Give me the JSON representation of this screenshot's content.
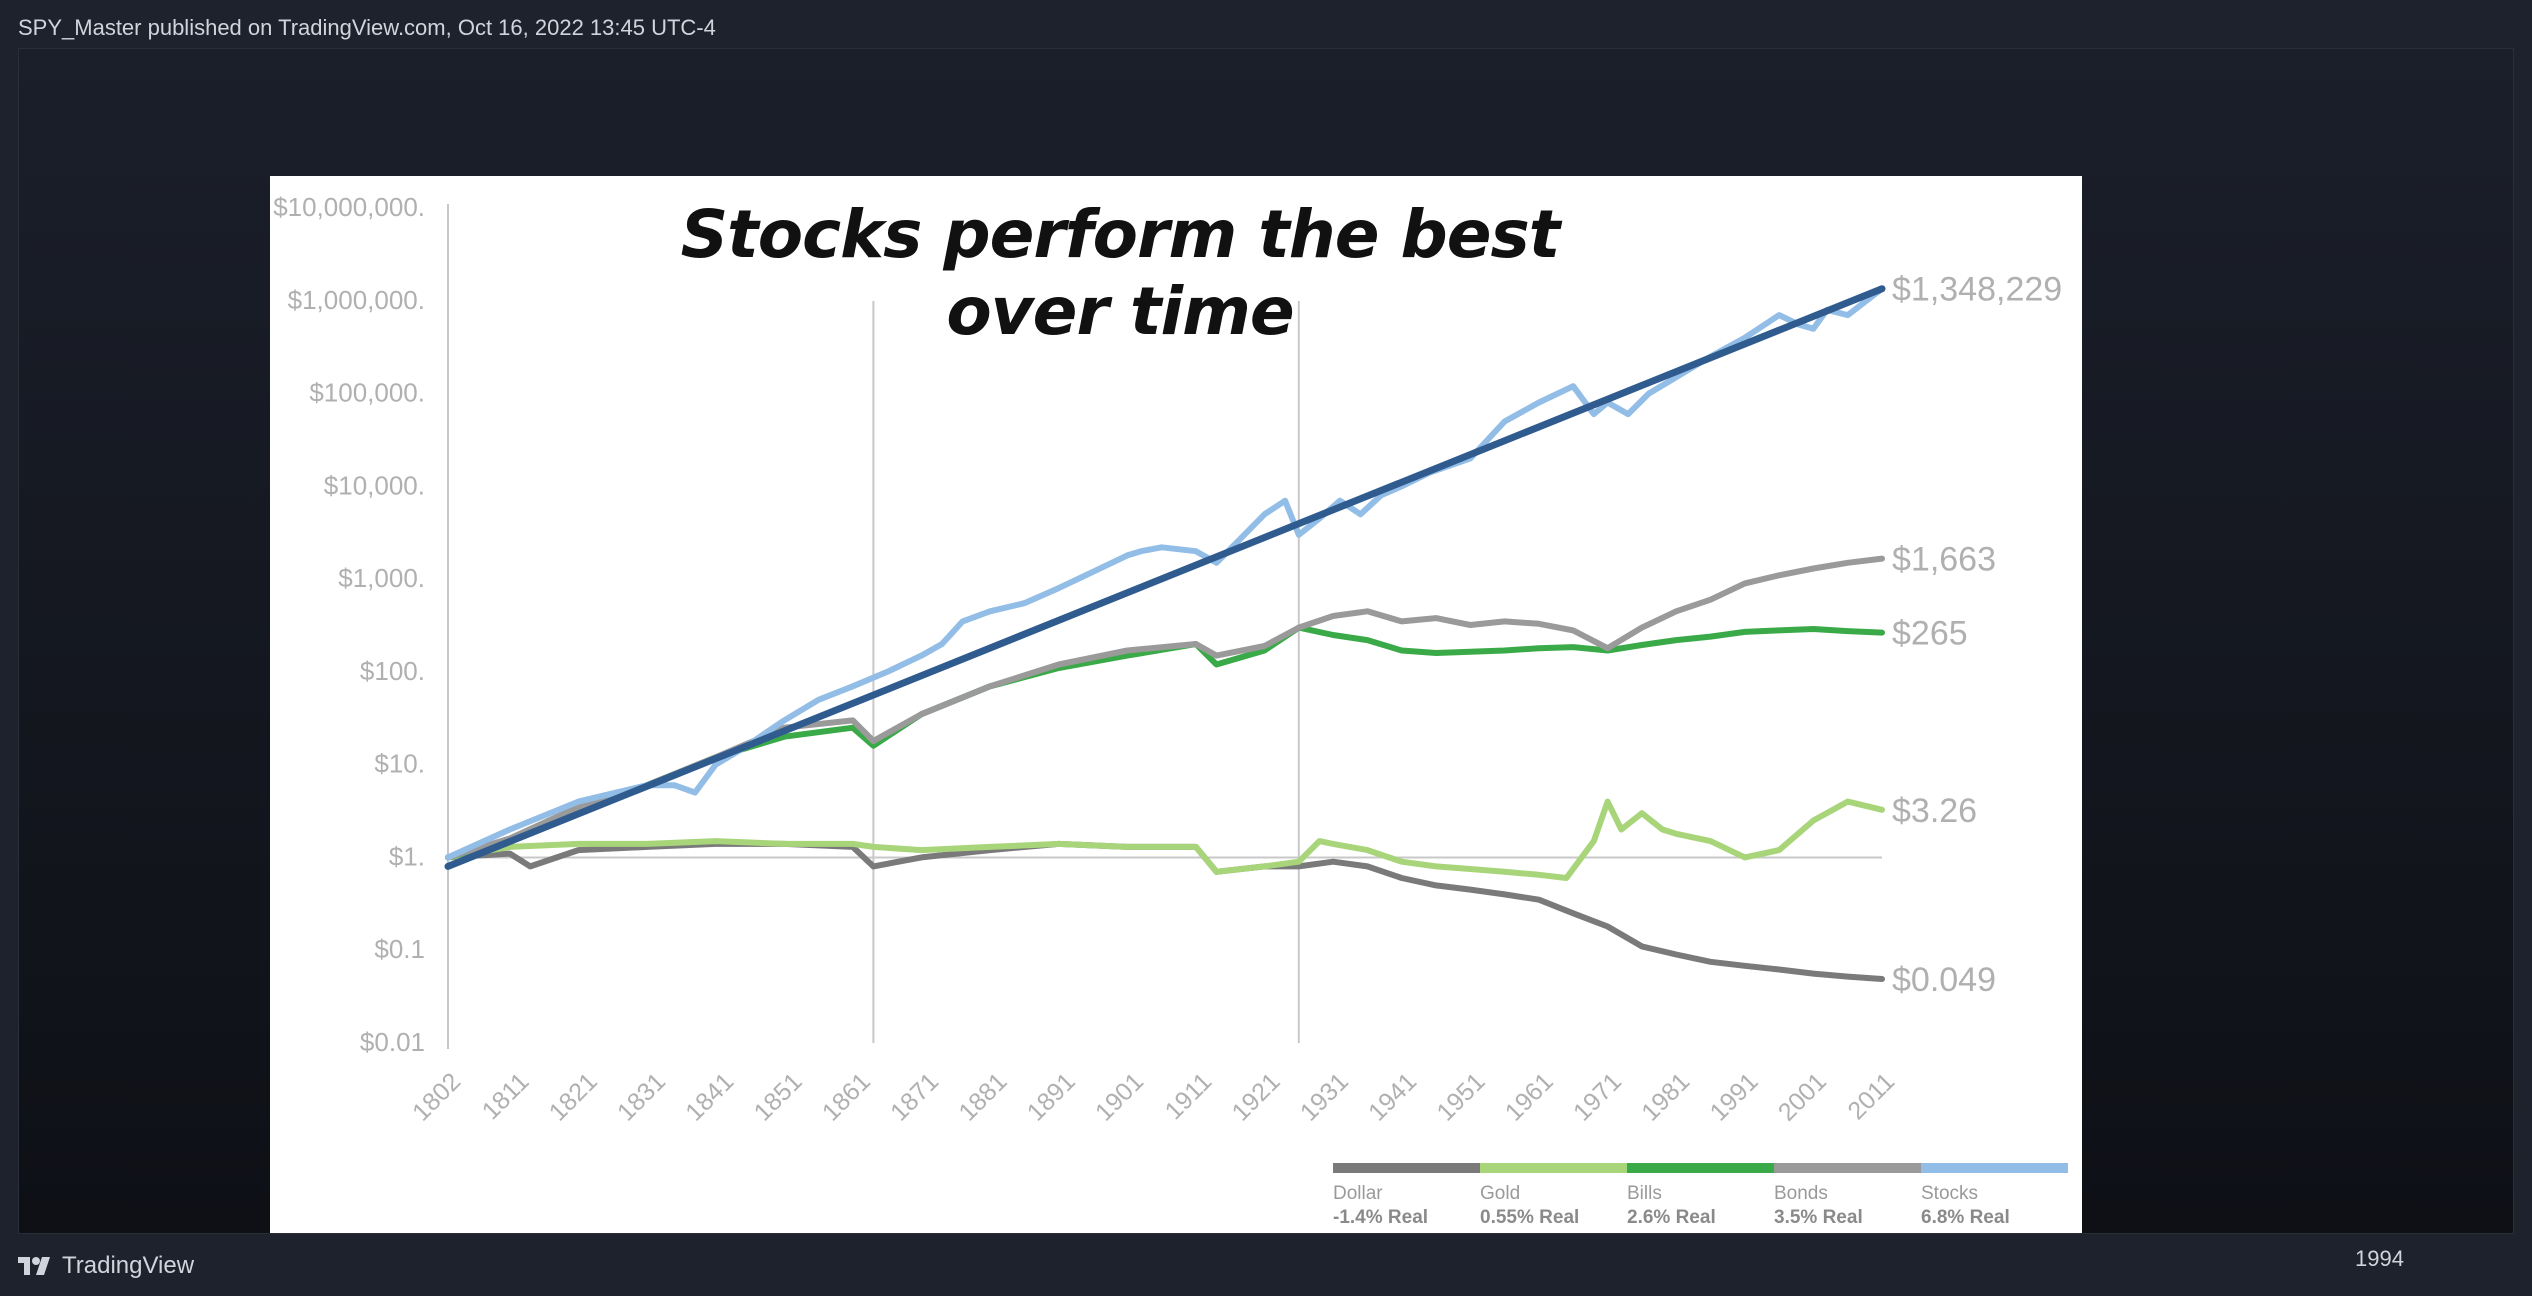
{
  "header": {
    "text": "SPY_Master published on TradingView.com, Oct 16, 2022 13:45 UTC-4"
  },
  "footer": {
    "brand": "TradingView",
    "logo_icon": "tradingview-logo-icon"
  },
  "year_label": "1994",
  "chart_data": {
    "type": "line",
    "title": "Stocks perform the best over time",
    "yscale": "log",
    "ylim": [
      0.01,
      10000000
    ],
    "xlim": [
      1802,
      2011
    ],
    "ytick_values": [
      0.01,
      0.1,
      1,
      10,
      100,
      1000,
      10000,
      100000,
      1000000,
      10000000
    ],
    "ytick_labels": [
      "$0.01",
      "$0.1",
      "$1.",
      "$10.",
      "$100.",
      "$1,000.",
      "$10,000.",
      "$100,000.",
      "$1,000,000.",
      "$10,000,000."
    ],
    "xtick_labels": [
      "1802",
      "1811",
      "1821",
      "1831",
      "1841",
      "1851",
      "1861",
      "1871",
      "1881",
      "1891",
      "1901",
      "1911",
      "1921",
      "1931",
      "1941",
      "1951",
      "1961",
      "1971",
      "1981",
      "1991",
      "2001",
      "2011"
    ],
    "vertical_lines": [
      1864,
      1926
    ],
    "reference_line": 1,
    "colors": {
      "stocks": "#92bde6",
      "trend": "#2f5b8f",
      "bonds": "#9a9a9a",
      "bills": "#3aaa48",
      "gold": "#a8d57a",
      "dollar": "#7a7a7a",
      "axis_text": "#b0b0b0"
    },
    "end_labels": [
      {
        "text": "$1,348,229",
        "y": 1348229
      },
      {
        "text": "$1,663",
        "y": 1663
      },
      {
        "text": "$265",
        "y": 265
      },
      {
        "text": "$3.26",
        "y": 3.26
      },
      {
        "text": "$0.049",
        "y": 0.049
      }
    ],
    "legend": [
      {
        "name": "Dollar",
        "real": "-1.4% Real",
        "color": "#7a7a7a"
      },
      {
        "name": "Gold",
        "real": "0.55% Real",
        "color": "#a8d57a"
      },
      {
        "name": "Bills",
        "real": "2.6% Real",
        "color": "#3aaa48"
      },
      {
        "name": "Bonds",
        "real": "3.5% Real",
        "color": "#9a9a9a"
      },
      {
        "name": "Stocks",
        "real": "6.8% Real",
        "color": "#92bde6"
      }
    ],
    "series": [
      {
        "key": "trend",
        "x": [
          1802,
          2011
        ],
        "y": [
          0.8,
          1348229
        ]
      },
      {
        "key": "stocks",
        "x": [
          1802,
          1811,
          1821,
          1831,
          1835,
          1838,
          1841,
          1845,
          1851,
          1856,
          1861,
          1866,
          1871,
          1874,
          1877,
          1881,
          1886,
          1891,
          1896,
          1901,
          1903,
          1906,
          1911,
          1914,
          1917,
          1921,
          1924,
          1926,
          1929,
          1932,
          1935,
          1938,
          1941,
          1945,
          1951,
          1956,
          1961,
          1966,
          1969,
          1971,
          1974,
          1977,
          1981,
          1986,
          1991,
          1996,
          1999,
          2001,
          2003,
          2006,
          2011
        ],
        "y": [
          1,
          2,
          4,
          6,
          6,
          5,
          10,
          15,
          30,
          50,
          70,
          100,
          150,
          200,
          350,
          450,
          550,
          800,
          1200,
          1800,
          2000,
          2200,
          2000,
          1500,
          2500,
          5000,
          7000,
          3000,
          4500,
          7000,
          5000,
          8000,
          10000,
          14000,
          20000,
          50000,
          80000,
          120000,
          60000,
          80000,
          60000,
          100000,
          150000,
          250000,
          400000,
          700000,
          550000,
          500000,
          800000,
          700000,
          1348229
        ]
      },
      {
        "key": "bonds",
        "x": [
          1802,
          1811,
          1821,
          1831,
          1841,
          1851,
          1861,
          1864,
          1871,
          1881,
          1891,
          1901,
          1911,
          1914,
          1921,
          1926,
          1931,
          1936,
          1941,
          1946,
          1951,
          1956,
          1961,
          1966,
          1971,
          1976,
          1981,
          1986,
          1991,
          1996,
          2001,
          2006,
          2011
        ],
        "y": [
          1,
          1.6,
          3.5,
          6,
          12,
          25,
          30,
          18,
          35,
          70,
          120,
          170,
          200,
          150,
          190,
          300,
          400,
          450,
          350,
          380,
          320,
          350,
          330,
          280,
          180,
          300,
          450,
          600,
          900,
          1100,
          1300,
          1500,
          1663
        ]
      },
      {
        "key": "bills",
        "x": [
          1802,
          1811,
          1821,
          1831,
          1841,
          1851,
          1861,
          1864,
          1871,
          1881,
          1891,
          1901,
          1911,
          1914,
          1921,
          1926,
          1931,
          1936,
          1941,
          1946,
          1951,
          1956,
          1961,
          1966,
          1971,
          1976,
          1981,
          1986,
          1991,
          1996,
          2001,
          2006,
          2011
        ],
        "y": [
          1,
          1.5,
          3.5,
          6,
          12,
          20,
          25,
          16,
          35,
          70,
          110,
          150,
          200,
          120,
          170,
          300,
          250,
          220,
          170,
          160,
          165,
          170,
          180,
          185,
          170,
          195,
          220,
          240,
          270,
          280,
          290,
          275,
          265
        ]
      },
      {
        "key": "gold",
        "x": [
          1802,
          1811,
          1821,
          1831,
          1841,
          1851,
          1861,
          1864,
          1871,
          1881,
          1891,
          1901,
          1911,
          1914,
          1921,
          1926,
          1929,
          1931,
          1936,
          1941,
          1946,
          1951,
          1956,
          1961,
          1965,
          1969,
          1971,
          1973,
          1976,
          1979,
          1981,
          1986,
          1991,
          1996,
          2001,
          2006,
          2011
        ],
        "y": [
          1,
          1.3,
          1.4,
          1.4,
          1.5,
          1.4,
          1.4,
          1.3,
          1.2,
          1.3,
          1.4,
          1.3,
          1.3,
          0.7,
          0.8,
          0.9,
          1.5,
          1.4,
          1.2,
          0.9,
          0.8,
          0.75,
          0.7,
          0.65,
          0.6,
          1.5,
          4,
          2,
          3,
          2,
          1.8,
          1.5,
          1,
          1.2,
          2.5,
          4,
          3.26
        ]
      },
      {
        "key": "dollar",
        "x": [
          1802,
          1811,
          1814,
          1821,
          1831,
          1841,
          1851,
          1861,
          1864,
          1871,
          1881,
          1891,
          1901,
          1911,
          1914,
          1921,
          1926,
          1931,
          1936,
          1941,
          1946,
          1951,
          1956,
          1961,
          1966,
          1971,
          1976,
          1981,
          1986,
          1991,
          1996,
          2001,
          2006,
          2011
        ],
        "y": [
          1,
          1.1,
          0.8,
          1.2,
          1.3,
          1.4,
          1.4,
          1.3,
          0.8,
          1.0,
          1.2,
          1.4,
          1.3,
          1.3,
          0.7,
          0.8,
          0.8,
          0.9,
          0.8,
          0.6,
          0.5,
          0.45,
          0.4,
          0.35,
          0.25,
          0.18,
          0.11,
          0.09,
          0.075,
          0.068,
          0.062,
          0.056,
          0.052,
          0.049
        ]
      }
    ]
  }
}
